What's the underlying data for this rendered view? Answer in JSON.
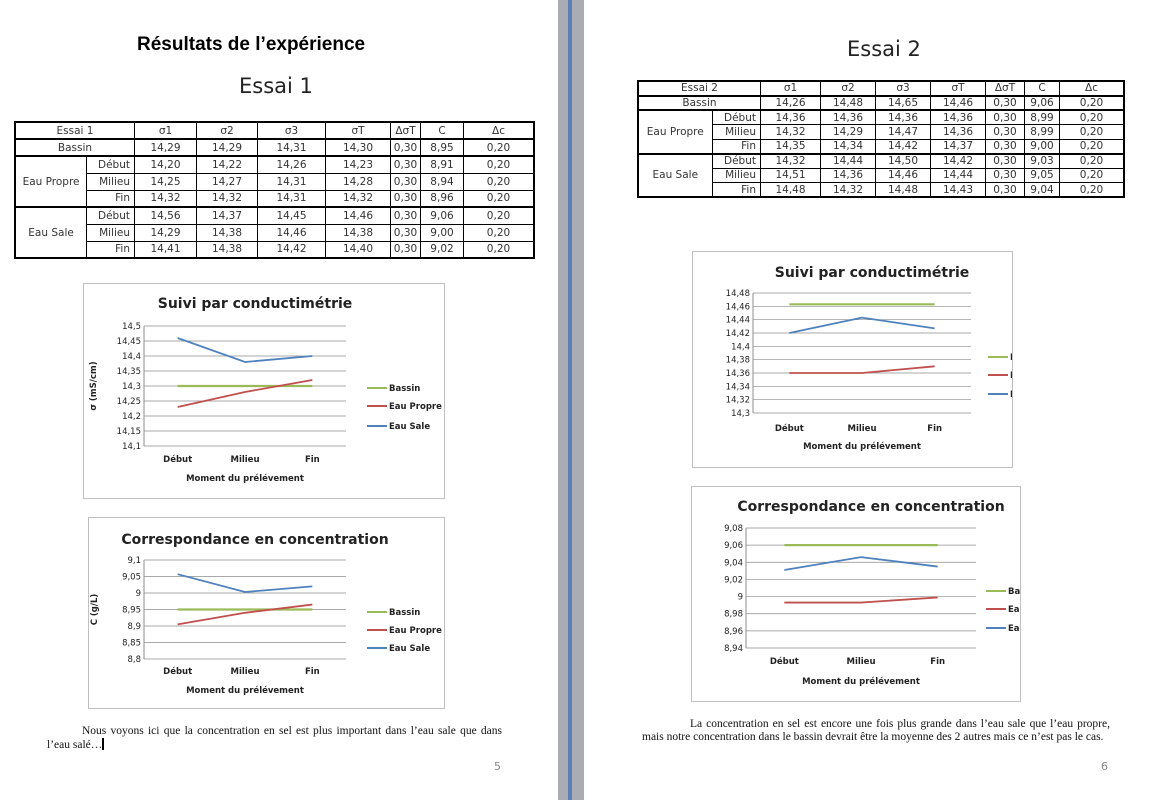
{
  "page5": {
    "heading": "Résultats de l’expérience",
    "essai_title": "Essai 1",
    "paragraph": "Nous voyons ici que la concentration en sel est plus important dans l’eau sale que dans l’eau salé…",
    "page_number": "5"
  },
  "page6": {
    "essai_title": "Essai 2",
    "paragraph": "La concentration en sel est encore une fois plus grande dans l’eau sale que l’eau propre, mais notre concentration dans le bassin devrait être la moyenne des 2 autres mais ce n’est pas le cas.",
    "page_number": "6"
  },
  "tables": [
    {
      "header": [
        "Essai 1",
        "σ1",
        "σ2",
        "σ3",
        "σT",
        "ΔσT",
        "C",
        "Δc"
      ],
      "rows": [
        {
          "group": "Bassin",
          "sub": "",
          "values": [
            "14,29",
            "14,29",
            "14,31",
            "14,30",
            "0,30",
            "8,95",
            "0,20"
          ]
        },
        {
          "group": "Eau Propre",
          "sub": "Début",
          "values": [
            "14,20",
            "14,22",
            "14,26",
            "14,23",
            "0,30",
            "8,91",
            "0,20"
          ]
        },
        {
          "group": "",
          "sub": "Milieu",
          "values": [
            "14,25",
            "14,27",
            "14,31",
            "14,28",
            "0,30",
            "8,94",
            "0,20"
          ]
        },
        {
          "group": "",
          "sub": "Fin",
          "values": [
            "14,32",
            "14,32",
            "14,31",
            "14,32",
            "0,30",
            "8,96",
            "0,20"
          ]
        },
        {
          "group": "Eau Sale",
          "sub": "Début",
          "values": [
            "14,56",
            "14,37",
            "14,45",
            "14,46",
            "0,30",
            "9,06",
            "0,20"
          ]
        },
        {
          "group": "",
          "sub": "Milieu",
          "values": [
            "14,29",
            "14,38",
            "14,46",
            "14,38",
            "0,30",
            "9,00",
            "0,20"
          ]
        },
        {
          "group": "",
          "sub": "Fin",
          "values": [
            "14,41",
            "14,38",
            "14,42",
            "14,40",
            "0,30",
            "9,02",
            "0,20"
          ]
        }
      ]
    },
    {
      "header": [
        "Essai 2",
        "σ1",
        "σ2",
        "σ3",
        "σT",
        "ΔσT",
        "C",
        "Δc"
      ],
      "rows": [
        {
          "group": "Bassin",
          "sub": "",
          "values": [
            "14,26",
            "14,48",
            "14,65",
            "14,46",
            "0,30",
            "9,06",
            "0,20"
          ]
        },
        {
          "group": "Eau Propre",
          "sub": "Début",
          "values": [
            "14,36",
            "14,36",
            "14,36",
            "14,36",
            "0,30",
            "8,99",
            "0,20"
          ]
        },
        {
          "group": "",
          "sub": "Milieu",
          "values": [
            "14,32",
            "14,29",
            "14,47",
            "14,36",
            "0,30",
            "8,99",
            "0,20"
          ]
        },
        {
          "group": "",
          "sub": "Fin",
          "values": [
            "14,35",
            "14,34",
            "14,42",
            "14,37",
            "0,30",
            "9,00",
            "0,20"
          ]
        },
        {
          "group": "Eau Sale",
          "sub": "Début",
          "values": [
            "14,32",
            "14,44",
            "14,50",
            "14,42",
            "0,30",
            "9,03",
            "0,20"
          ]
        },
        {
          "group": "",
          "sub": "Milieu",
          "values": [
            "14,51",
            "14,36",
            "14,46",
            "14,44",
            "0,30",
            "9,05",
            "0,20"
          ]
        },
        {
          "group": "",
          "sub": "Fin",
          "values": [
            "14,48",
            "14,32",
            "14,48",
            "14,43",
            "0,30",
            "9,04",
            "0,20"
          ]
        }
      ]
    }
  ],
  "chart_data": [
    {
      "type": "line",
      "title": "Suivi par conductimétrie",
      "xlabel": "Moment du prélévement",
      "ylabel": "σ (mS/cm)",
      "categories": [
        "Début",
        "Milieu",
        "Fin"
      ],
      "ylim": [
        14.1,
        14.5
      ],
      "yticks": [
        "14,1",
        "14,15",
        "14,2",
        "14,25",
        "14,3",
        "14,35",
        "14,4",
        "14,45",
        "14,5"
      ],
      "grid": true,
      "legend": "right",
      "series": [
        {
          "name": "Bassin",
          "color": "#9bbb59",
          "values": [
            14.3,
            14.3,
            14.3
          ]
        },
        {
          "name": "Eau Propre",
          "color": "#c0504d",
          "values": [
            14.23,
            14.28,
            14.32
          ]
        },
        {
          "name": "Eau Sale",
          "color": "#4f81bd",
          "values": [
            14.46,
            14.38,
            14.4
          ]
        }
      ]
    },
    {
      "type": "line",
      "title": "Correspondance en concentration",
      "xlabel": "Moment du prélévement",
      "ylabel": "C (g/L)",
      "categories": [
        "Début",
        "Milieu",
        "Fin"
      ],
      "ylim": [
        8.8,
        9.1
      ],
      "yticks": [
        "8,8",
        "8,85",
        "8,9",
        "8,95",
        "9",
        "9,05",
        "9,1"
      ],
      "grid": true,
      "legend": "right",
      "series": [
        {
          "name": "Bassin",
          "color": "#9bbb59",
          "values": [
            8.95,
            8.95,
            8.95
          ]
        },
        {
          "name": "Eau Propre",
          "color": "#c0504d",
          "values": [
            8.905,
            8.94,
            8.965
          ]
        },
        {
          "name": "Eau Sale",
          "color": "#4f81bd",
          "values": [
            9.057,
            9.003,
            9.02
          ]
        }
      ]
    },
    {
      "type": "line",
      "title": "Suivi par conductimétrie",
      "xlabel": "Moment du prélévement",
      "ylabel": "σ (mS/cm)",
      "categories": [
        "Début",
        "Milieu",
        "Fin"
      ],
      "ylim": [
        14.3,
        14.48
      ],
      "yticks": [
        "14,3",
        "14,32",
        "14,34",
        "14,36",
        "14,38",
        "14,4",
        "14,42",
        "14,44",
        "14,46",
        "14,48"
      ],
      "grid": true,
      "legend": "right",
      "series": [
        {
          "name": "Bassin",
          "color": "#9bbb59",
          "values": [
            14.463,
            14.463,
            14.463
          ]
        },
        {
          "name": "Eau Propre",
          "color": "#c0504d",
          "values": [
            14.36,
            14.36,
            14.37
          ]
        },
        {
          "name": "Eau Sale",
          "color": "#4f81bd",
          "values": [
            14.42,
            14.443,
            14.427
          ]
        }
      ]
    },
    {
      "type": "line",
      "title": "Correspondance en concentration",
      "xlabel": "Moment du prélévement",
      "ylabel": "C (g/L)",
      "categories": [
        "Début",
        "Milieu",
        "Fin"
      ],
      "ylim": [
        8.94,
        9.08
      ],
      "yticks": [
        "8,94",
        "8,96",
        "8,98",
        "9",
        "9,02",
        "9,04",
        "9,06",
        "9,08"
      ],
      "grid": true,
      "legend": "right",
      "series": [
        {
          "name": "Bassin",
          "color": "#9bbb59",
          "values": [
            9.06,
            9.06,
            9.06
          ]
        },
        {
          "name": "Eau Propre",
          "color": "#c0504d",
          "values": [
            8.993,
            8.993,
            8.999
          ]
        },
        {
          "name": "Eau Sale",
          "color": "#4f81bd",
          "values": [
            9.031,
            9.046,
            9.035
          ]
        }
      ]
    }
  ]
}
